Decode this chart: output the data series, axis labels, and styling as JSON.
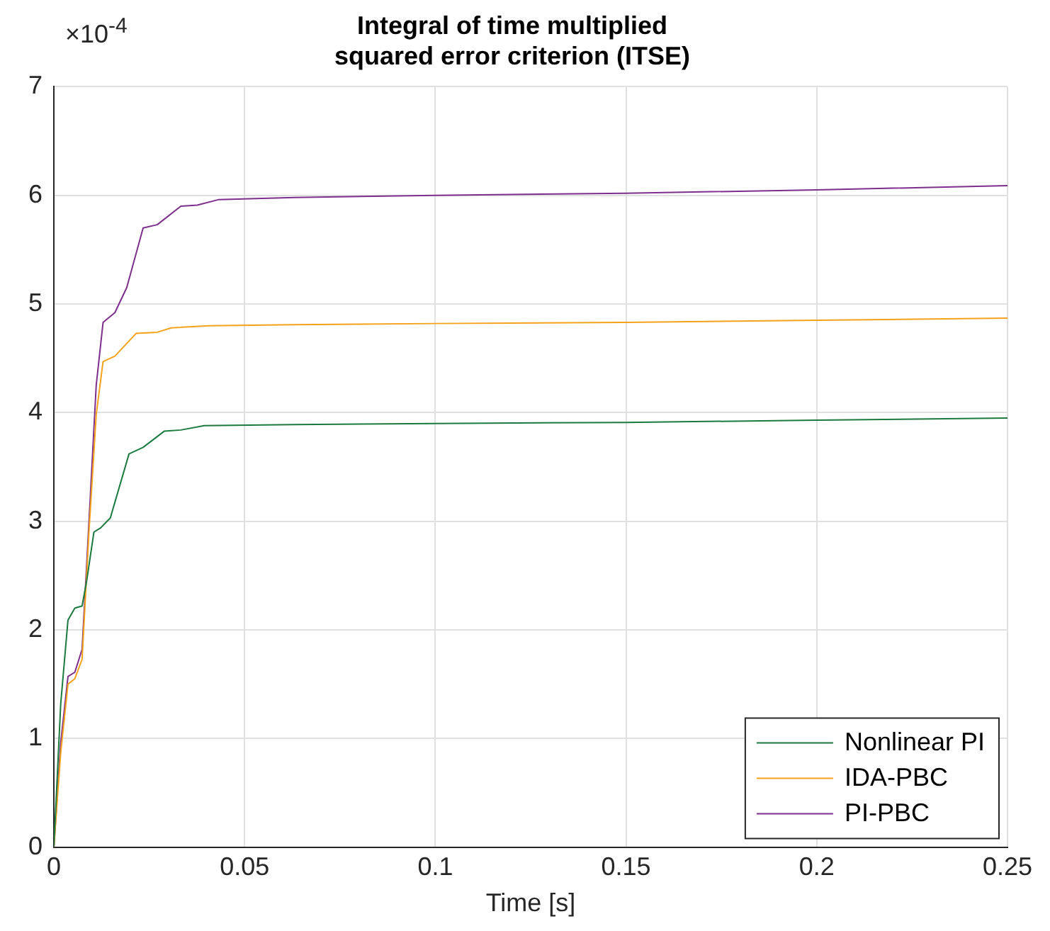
{
  "chart_data": {
    "type": "line",
    "title": "Integral of time multiplied\nsquared error criterion (ITSE)",
    "xlabel": "Time [s]",
    "annotations": [
      "×10$^{-4}$"
    ],
    "xlim": [
      0,
      0.25
    ],
    "xticks": [
      0,
      0.05,
      0.1,
      0.15,
      0.2,
      0.25
    ],
    "ylim": [
      0,
      7
    ],
    "yticks": [
      0,
      1,
      2,
      3,
      4,
      5,
      6,
      7
    ],
    "grid": true,
    "legend": "bottom right",
    "marker": "none",
    "line_style": "solid",
    "series": [
      {
        "name": "Nonlinear PI",
        "color": "#1b7a3e",
        "x": [
          0,
          0.0018,
          0.0037,
          0.0055,
          0.0074,
          0.0086,
          0.0105,
          0.0123,
          0.0148,
          0.0197,
          0.0234,
          0.029,
          0.0333,
          0.0394,
          0.063,
          0.1,
          0.15,
          0.2,
          0.25
        ],
        "values": [
          0,
          1.32,
          2.09,
          2.2,
          2.22,
          2.45,
          2.9,
          2.94,
          3.03,
          3.62,
          3.68,
          3.83,
          3.84,
          3.88,
          3.89,
          3.9,
          3.91,
          3.93,
          3.95
        ]
      },
      {
        "name": "IDA-PBC",
        "color": "#f5a21b",
        "x": [
          0,
          0.0018,
          0.0037,
          0.0055,
          0.0074,
          0.0092,
          0.0111,
          0.0129,
          0.016,
          0.0216,
          0.0271,
          0.0308,
          0.0407,
          0.063,
          0.1,
          0.15,
          0.2,
          0.25
        ],
        "values": [
          0,
          0.87,
          1.5,
          1.55,
          1.73,
          2.9,
          3.98,
          4.47,
          4.52,
          4.73,
          4.74,
          4.78,
          4.8,
          4.81,
          4.82,
          4.83,
          4.85,
          4.87
        ]
      },
      {
        "name": "PI-PBC",
        "color": "#7e2f8e",
        "x": [
          0,
          0.0018,
          0.0037,
          0.0055,
          0.0074,
          0.0092,
          0.0111,
          0.0129,
          0.016,
          0.0191,
          0.0234,
          0.0271,
          0.0333,
          0.0376,
          0.0431,
          0.063,
          0.1,
          0.15,
          0.2,
          0.25
        ],
        "values": [
          0,
          0.96,
          1.57,
          1.61,
          1.82,
          2.99,
          4.25,
          4.83,
          4.92,
          5.15,
          5.7,
          5.73,
          5.9,
          5.91,
          5.96,
          5.98,
          6.0,
          6.02,
          6.05,
          6.09
        ]
      }
    ]
  }
}
